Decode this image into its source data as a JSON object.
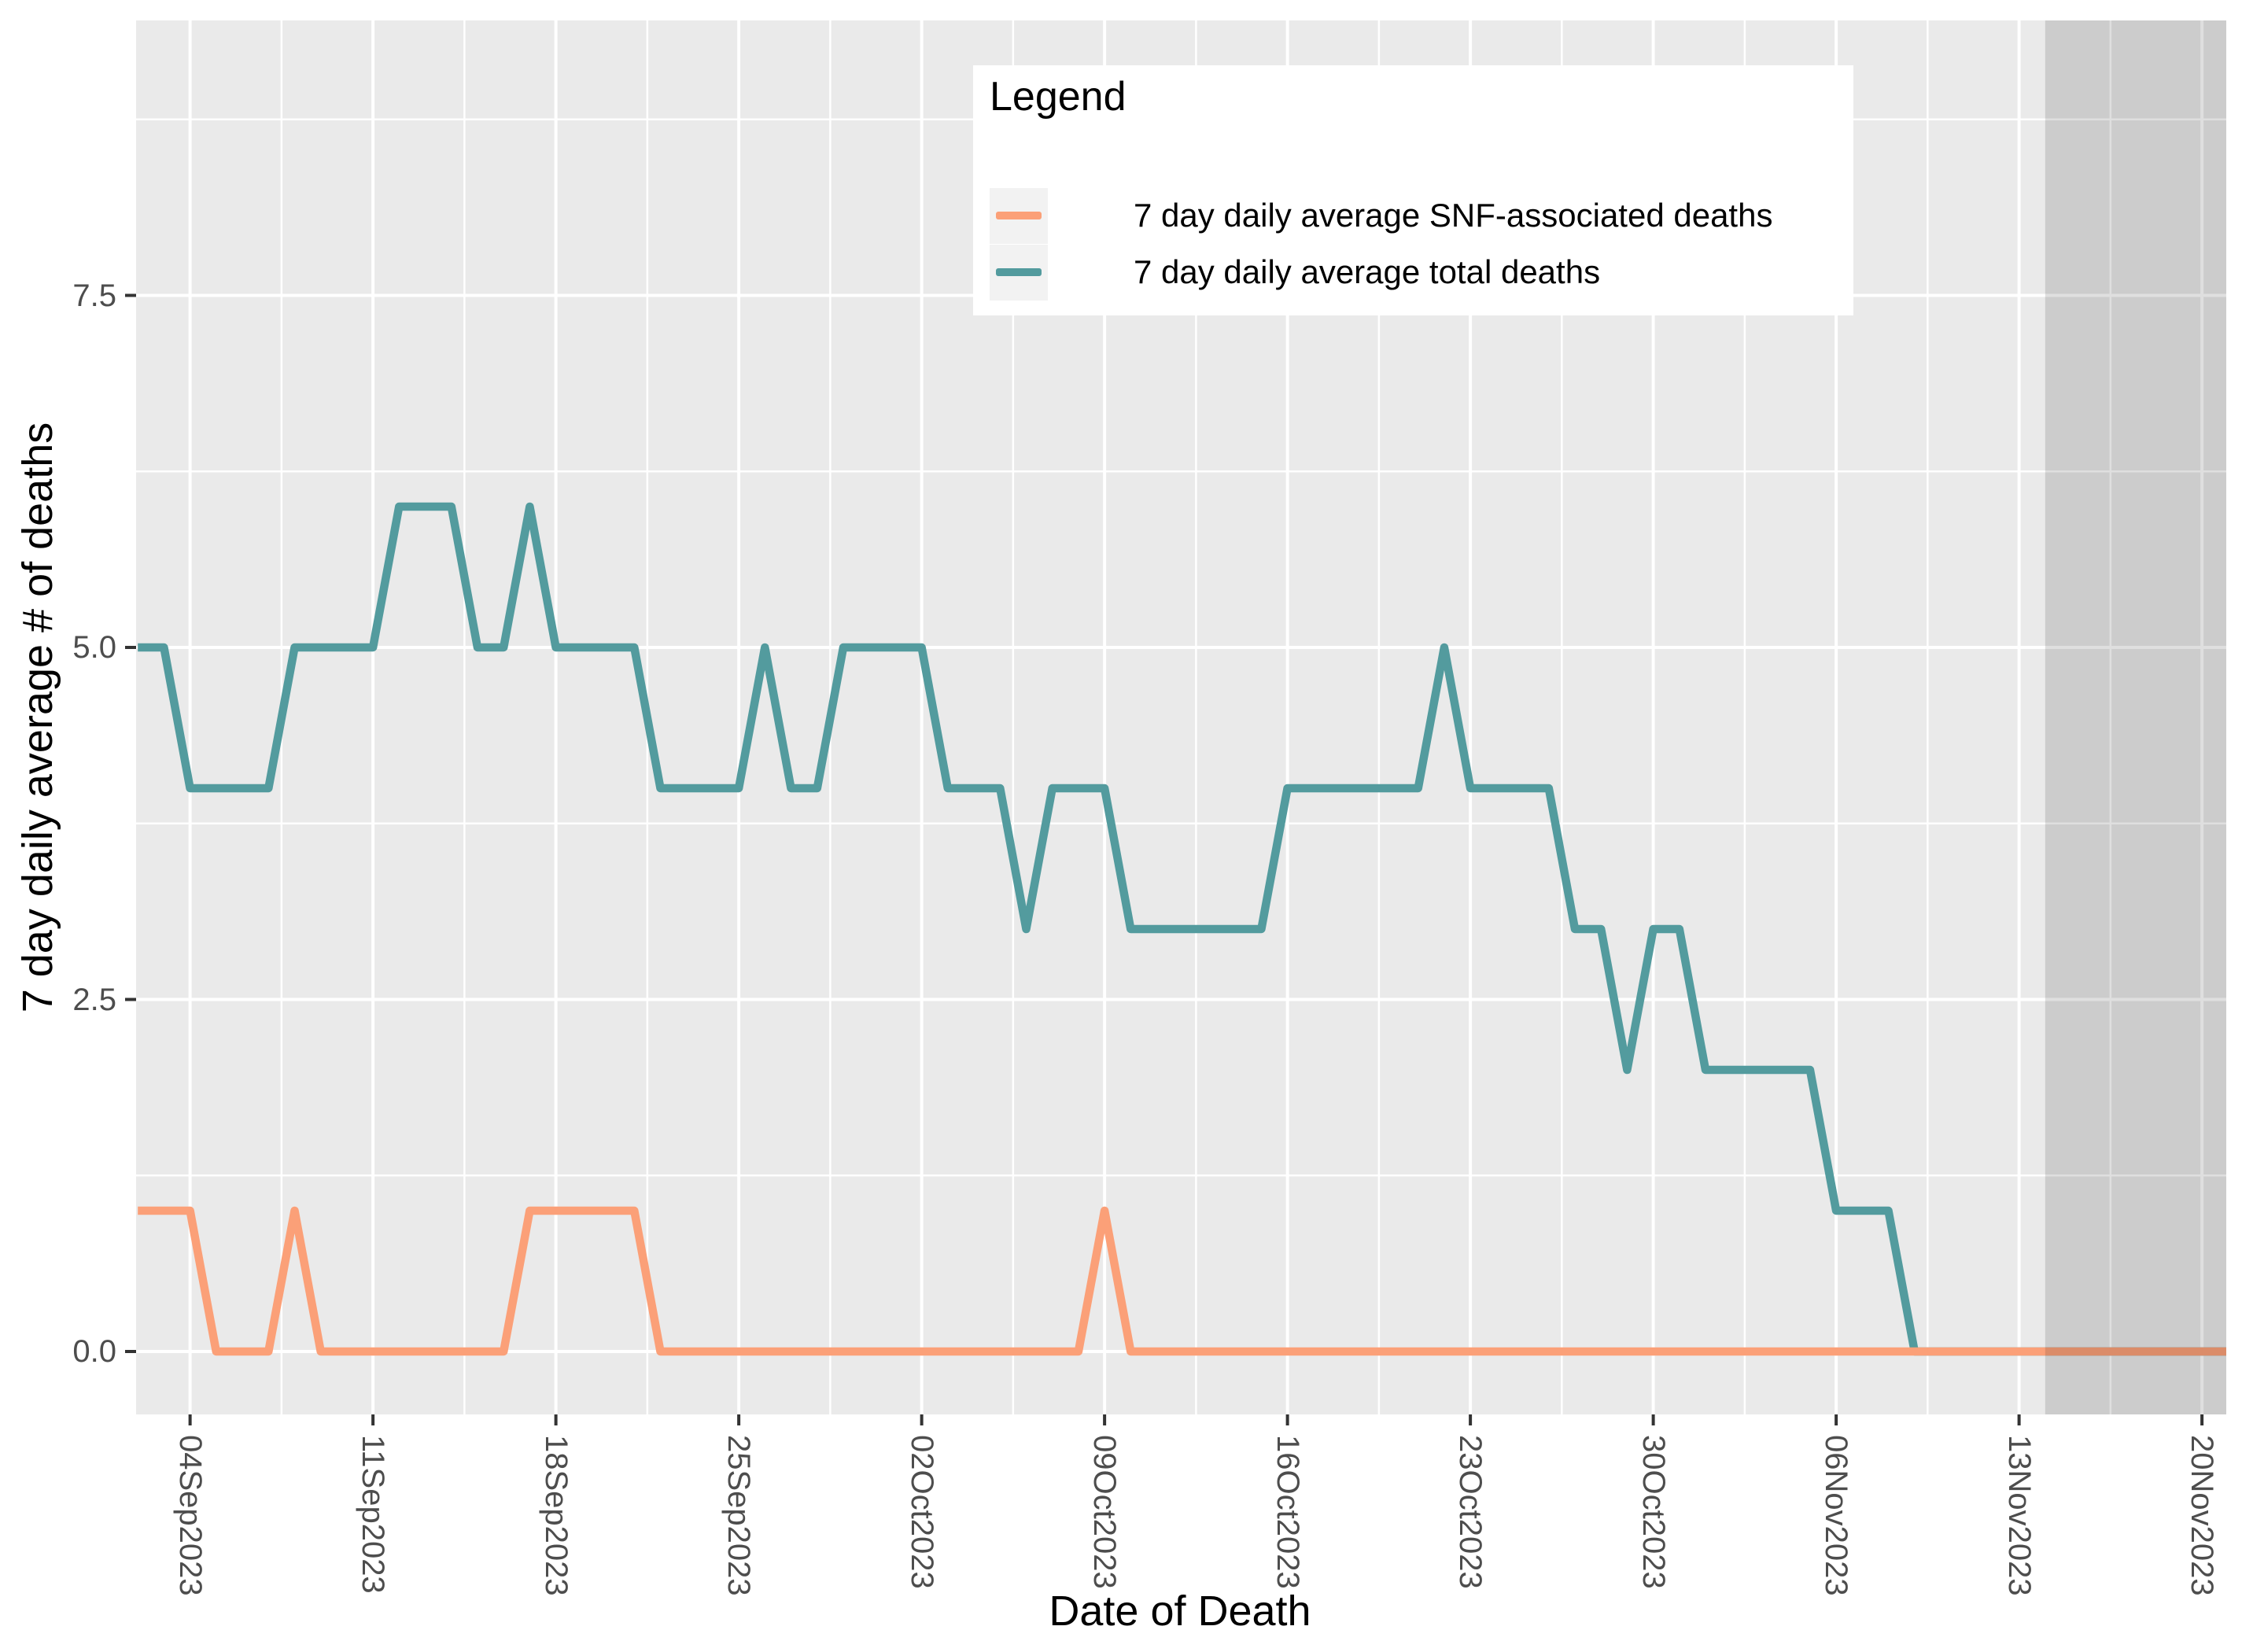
{
  "axes": {
    "x_title": "Date of Death",
    "y_title": "7 day daily average # of deaths",
    "x_tick_labels": [
      "04Sep2023",
      "11Sep2023",
      "18Sep2023",
      "25Sep2023",
      "02Oct2023",
      "09Oct2023",
      "16Oct2023",
      "23Oct2023",
      "30Oct2023",
      "06Nov2023",
      "13Nov2023",
      "20Nov2023"
    ],
    "y_tick_labels": [
      "0.0",
      "2.5",
      "5.0",
      "7.5"
    ],
    "y_tick_values": [
      0,
      2.5,
      5,
      7.5
    ],
    "tick_text_color": "#4d4d4d",
    "title_color": "#000000"
  },
  "legend": {
    "title": "Legend",
    "background": "#ffffff",
    "key_background": "#f2f2f2"
  },
  "style": {
    "panel_background": "#eaeaea",
    "grid_color": "#ffffff",
    "shade_color": "rgba(0,0,0,0.125)",
    "tick_mark_color": "#333333"
  },
  "chart_data": {
    "type": "line",
    "title": "",
    "xlabel": "Date of Death",
    "ylabel": "7 day daily average # of deaths",
    "ylim": [
      0,
      9
    ],
    "grid": "on",
    "legend_position": "top-right-inset",
    "x": [
      "02Sep2023",
      "03Sep2023",
      "04Sep2023",
      "05Sep2023",
      "06Sep2023",
      "07Sep2023",
      "08Sep2023",
      "09Sep2023",
      "10Sep2023",
      "11Sep2023",
      "12Sep2023",
      "13Sep2023",
      "14Sep2023",
      "15Sep2023",
      "16Sep2023",
      "17Sep2023",
      "18Sep2023",
      "19Sep2023",
      "20Sep2023",
      "21Sep2023",
      "22Sep2023",
      "23Sep2023",
      "24Sep2023",
      "25Sep2023",
      "26Sep2023",
      "27Sep2023",
      "28Sep2023",
      "29Sep2023",
      "30Sep2023",
      "01Oct2023",
      "02Oct2023",
      "03Oct2023",
      "04Oct2023",
      "05Oct2023",
      "06Oct2023",
      "07Oct2023",
      "08Oct2023",
      "09Oct2023",
      "10Oct2023",
      "11Oct2023",
      "12Oct2023",
      "13Oct2023",
      "14Oct2023",
      "15Oct2023",
      "16Oct2023",
      "17Oct2023",
      "18Oct2023",
      "19Oct2023",
      "20Oct2023",
      "21Oct2023",
      "22Oct2023",
      "23Oct2023",
      "24Oct2023",
      "25Oct2023",
      "26Oct2023",
      "27Oct2023",
      "28Oct2023",
      "29Oct2023",
      "30Oct2023",
      "31Oct2023",
      "01Nov2023",
      "02Nov2023",
      "03Nov2023",
      "04Nov2023",
      "05Nov2023",
      "06Nov2023",
      "07Nov2023",
      "08Nov2023",
      "09Nov2023",
      "10Nov2023",
      "11Nov2023",
      "12Nov2023",
      "13Nov2023",
      "14Nov2023",
      "15Nov2023",
      "16Nov2023",
      "17Nov2023",
      "18Nov2023",
      "19Nov2023",
      "20Nov2023",
      "21Nov2023"
    ],
    "series": [
      {
        "name": "7 day daily average SNF-associated deaths",
        "color": "#FBA078",
        "values": [
          1,
          1,
          1,
          0,
          0,
          0,
          1,
          0,
          0,
          0,
          0,
          0,
          0,
          0,
          0,
          1,
          1,
          1,
          1,
          1,
          0,
          0,
          0,
          0,
          0,
          0,
          0,
          0,
          0,
          0,
          0,
          0,
          0,
          0,
          0,
          0,
          0,
          1,
          0,
          0,
          0,
          0,
          0,
          0,
          0,
          0,
          0,
          0,
          0,
          0,
          0,
          0,
          0,
          0,
          0,
          0,
          0,
          0,
          0,
          0,
          0,
          0,
          0,
          0,
          0,
          0,
          0,
          0,
          0,
          0,
          0,
          0,
          0,
          0,
          0,
          0,
          0,
          0,
          0,
          0,
          0
        ]
      },
      {
        "name": "7 day daily average total deaths",
        "color": "#539B9E",
        "values": [
          5,
          5,
          4,
          4,
          4,
          4,
          5,
          5,
          5,
          5,
          6,
          6,
          6,
          5,
          5,
          6,
          5,
          5,
          5,
          5,
          4,
          4,
          4,
          4,
          5,
          4,
          4,
          5,
          5,
          5,
          5,
          4,
          4,
          4,
          3,
          4,
          4,
          4,
          3,
          3,
          3,
          3,
          3,
          3,
          4,
          4,
          4,
          4,
          4,
          4,
          5,
          4,
          4,
          4,
          4,
          3,
          3,
          2,
          3,
          3,
          2,
          2,
          2,
          2,
          2,
          1,
          1,
          1,
          0,
          0,
          0,
          0,
          0,
          0,
          0,
          0,
          0,
          0,
          0,
          0,
          0
        ]
      }
    ],
    "shaded_region": {
      "start": "14Nov2023",
      "end": "21Nov2023"
    }
  }
}
